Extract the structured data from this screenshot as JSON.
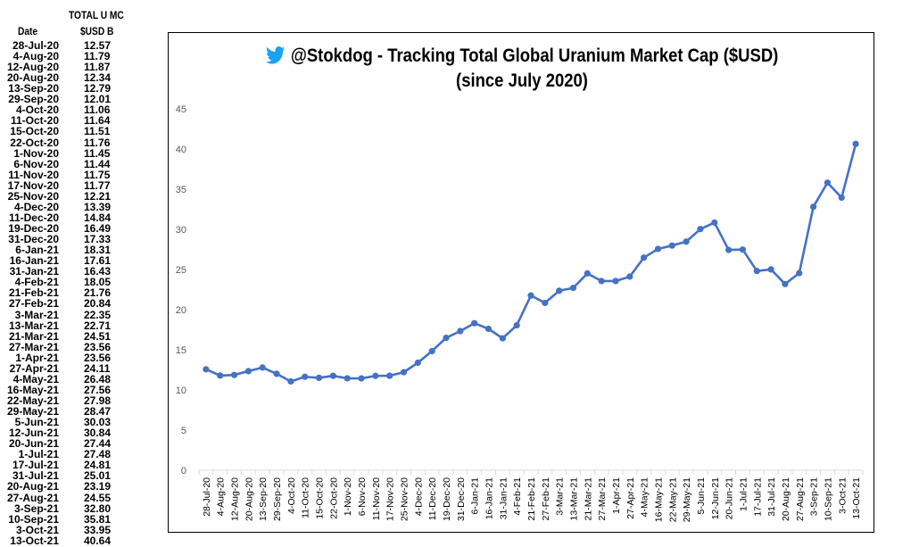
{
  "table": {
    "header_top": "TOTAL U MC",
    "header_date": "Date",
    "header_unit": "$USD B"
  },
  "chart_data": {
    "type": "line",
    "title": "@Stokdog - Tracking Total Global Uranium Market Cap ($USD)",
    "subtitle": "(since July 2020)",
    "xlabel": "",
    "ylabel": "",
    "ylim": [
      0,
      45
    ],
    "yticks": [
      0,
      5,
      10,
      15,
      20,
      25,
      30,
      35,
      40,
      45
    ],
    "grid": false,
    "legend": "none",
    "line_color": "#4472C4",
    "categories": [
      "28-Jul-20",
      "4-Aug-20",
      "12-Aug-20",
      "20-Aug-20",
      "13-Sep-20",
      "29-Sep-20",
      "4-Oct-20",
      "11-Oct-20",
      "15-Oct-20",
      "22-Oct-20",
      "1-Nov-20",
      "6-Nov-20",
      "11-Nov-20",
      "17-Nov-20",
      "25-Nov-20",
      "4-Dec-20",
      "11-Dec-20",
      "19-Dec-20",
      "31-Dec-20",
      "6-Jan-21",
      "16-Jan-21",
      "31-Jan-21",
      "4-Feb-21",
      "21-Feb-21",
      "27-Feb-21",
      "3-Mar-21",
      "13-Mar-21",
      "21-Mar-21",
      "27-Mar-21",
      "1-Apr-21",
      "27-Apr-21",
      "4-May-21",
      "16-May-21",
      "22-May-21",
      "29-May-21",
      "5-Jun-21",
      "12-Jun-21",
      "20-Jun-21",
      "1-Jul-21",
      "17-Jul-21",
      "31-Jul-21",
      "20-Aug-21",
      "27-Aug-21",
      "3-Sep-21",
      "10-Sep-21",
      "3-Oct-21",
      "13-Oct-21"
    ],
    "values": [
      12.57,
      11.79,
      11.87,
      12.34,
      12.79,
      12.01,
      11.06,
      11.64,
      11.51,
      11.76,
      11.45,
      11.44,
      11.75,
      11.77,
      12.21,
      13.39,
      14.84,
      16.49,
      17.33,
      18.31,
      17.61,
      16.43,
      18.05,
      21.76,
      20.84,
      22.35,
      22.71,
      24.51,
      23.56,
      23.56,
      24.11,
      26.48,
      27.56,
      27.98,
      28.47,
      30.03,
      30.84,
      27.44,
      27.48,
      24.81,
      25.01,
      23.19,
      24.55,
      32.8,
      35.81,
      33.95,
      40.64
    ],
    "table_values": [
      "12.57",
      "11.79",
      "11.87",
      "12.34",
      "12.79",
      "12.01",
      "11.06",
      "11.64",
      "11.51",
      "11.76",
      "11.45",
      "11.44",
      "11.75",
      "11.77",
      "12.21",
      "13.39",
      "14.84",
      "16.49",
      "17.33",
      "18.31",
      "17.61",
      "16.43",
      "18.05",
      "21.76",
      "20.84",
      "22.35",
      "22.71",
      "24.51",
      "23.56",
      "23.56",
      "24.11",
      "26.48",
      "27.56",
      "27.98",
      "28.47",
      "30.03",
      "30.84",
      "27.44",
      "27.48",
      "24.81",
      "25.01",
      "23.19",
      "24.55",
      "32.80",
      "35.81",
      "33.95",
      "40.64"
    ]
  }
}
